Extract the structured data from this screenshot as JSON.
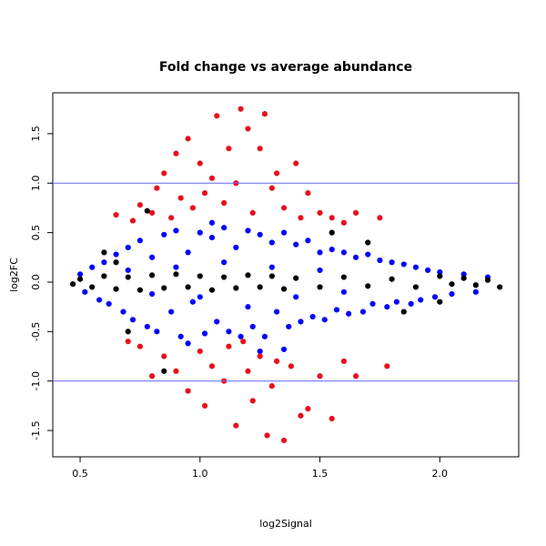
{
  "chart_data": {
    "type": "scatter",
    "title": "Fold change vs average abundance",
    "xlabel": "log2Signal",
    "ylabel": "log2FC",
    "xlim": [
      0.386,
      2.329
    ],
    "ylim": [
      -1.766,
      1.913
    ],
    "xticks": [
      0.5,
      {
        "value": 1,
        "label": "1.0"
      },
      1.5,
      {
        "value": 2,
        "label": "2.0"
      }
    ],
    "yticks": [
      -1.5,
      {
        "value": -1,
        "label": "-1.0"
      },
      -0.5,
      {
        "value": 0,
        "label": "0.0"
      },
      0.5,
      {
        "value": 1,
        "label": "1.0"
      },
      1.5
    ],
    "hlines": [
      1,
      -1
    ],
    "hline_color": "#6666ee",
    "series": [
      {
        "color": "#0000ff",
        "x": [
          0.5,
          0.52,
          0.55,
          0.58,
          0.6,
          0.62,
          0.65,
          0.68,
          0.7,
          0.72,
          0.75,
          0.78,
          0.8,
          0.82,
          0.85,
          0.88,
          0.9,
          0.92,
          0.95,
          0.97,
          1.0,
          1.02,
          1.05,
          1.07,
          1.1,
          1.12,
          1.15,
          1.17,
          1.2,
          1.22,
          1.25,
          1.27,
          1.3,
          1.32,
          1.35,
          1.37,
          1.4,
          1.42,
          1.45,
          1.47,
          1.5,
          1.52,
          1.55,
          1.57,
          1.6,
          1.62,
          1.65,
          1.68,
          1.7,
          1.72,
          1.75,
          1.78,
          1.8,
          1.82,
          1.85,
          1.88,
          1.9,
          1.92,
          1.95,
          1.98,
          2.0,
          2.05,
          2.1,
          2.15,
          2.2,
          0.9,
          1.0,
          1.1,
          1.2,
          1.3,
          1.4,
          1.5,
          0.8,
          0.7,
          1.6,
          1.25,
          1.35,
          1.05,
          0.95
        ],
        "values": [
          0.08,
          -0.1,
          0.15,
          -0.18,
          0.2,
          -0.22,
          0.28,
          -0.3,
          0.35,
          -0.38,
          0.42,
          -0.45,
          0.25,
          -0.5,
          0.48,
          -0.3,
          0.52,
          -0.55,
          0.3,
          -0.2,
          0.5,
          -0.52,
          0.45,
          -0.4,
          0.55,
          -0.5,
          0.35,
          -0.55,
          0.52,
          -0.45,
          0.48,
          -0.55,
          0.4,
          -0.3,
          0.5,
          -0.45,
          0.38,
          -0.4,
          0.42,
          -0.35,
          0.3,
          -0.38,
          0.33,
          -0.28,
          0.3,
          -0.32,
          0.25,
          -0.3,
          0.28,
          -0.22,
          0.22,
          -0.25,
          0.2,
          -0.2,
          0.18,
          -0.22,
          0.15,
          -0.18,
          0.12,
          -0.15,
          0.1,
          -0.12,
          0.08,
          -0.1,
          0.05,
          0.15,
          -0.15,
          0.2,
          -0.25,
          0.15,
          -0.15,
          0.12,
          -0.12,
          0.12,
          -0.1,
          -0.7,
          -0.68,
          0.6,
          -0.62
        ]
      },
      {
        "color": "#e8101c",
        "x": [
          0.75,
          0.8,
          0.82,
          0.85,
          0.88,
          0.9,
          0.92,
          0.95,
          0.97,
          1.0,
          1.02,
          1.05,
          1.07,
          1.1,
          1.12,
          1.15,
          1.17,
          1.2,
          1.22,
          1.25,
          1.27,
          1.3,
          1.32,
          1.35,
          1.4,
          1.42,
          1.45,
          1.5,
          1.55,
          1.6,
          1.65,
          1.75,
          0.65,
          0.72,
          0.75,
          0.8,
          0.85,
          0.9,
          0.95,
          1.0,
          1.02,
          1.05,
          1.1,
          1.12,
          1.15,
          1.2,
          1.22,
          1.25,
          1.28,
          1.3,
          1.32,
          1.35,
          1.38,
          1.42,
          1.45,
          1.5,
          1.55,
          1.6,
          1.65,
          1.78,
          0.7,
          1.18
        ],
        "values": [
          0.78,
          0.7,
          0.95,
          1.1,
          0.65,
          1.3,
          0.85,
          1.45,
          0.75,
          1.2,
          0.9,
          1.05,
          1.68,
          0.8,
          1.35,
          1.0,
          1.75,
          1.55,
          0.7,
          1.35,
          1.7,
          0.95,
          1.1,
          0.75,
          1.2,
          0.65,
          0.9,
          0.7,
          0.65,
          0.6,
          0.7,
          0.65,
          0.68,
          0.62,
          -0.65,
          -0.95,
          -0.75,
          -0.9,
          -1.1,
          -0.7,
          -1.25,
          -0.85,
          -1.0,
          -0.65,
          -1.45,
          -0.9,
          -1.2,
          -0.75,
          -1.55,
          -1.05,
          -0.8,
          -1.6,
          -0.85,
          -1.35,
          -1.28,
          -0.95,
          -1.38,
          -0.8,
          -0.95,
          -0.85,
          -0.6,
          -0.6
        ]
      },
      {
        "color": "#000000",
        "x": [
          0.47,
          0.5,
          0.55,
          0.6,
          0.65,
          0.7,
          0.75,
          0.8,
          0.85,
          0.9,
          0.95,
          1.0,
          1.05,
          1.1,
          1.15,
          1.2,
          1.25,
          1.3,
          1.35,
          1.4,
          1.5,
          1.6,
          1.7,
          1.8,
          1.9,
          2.0,
          2.05,
          2.1,
          2.15,
          2.2,
          2.25,
          0.6,
          0.7,
          0.78,
          0.85,
          1.7,
          1.85,
          2.0,
          0.65,
          1.55
        ],
        "values": [
          -0.02,
          0.03,
          -0.05,
          0.06,
          -0.07,
          0.05,
          -0.08,
          0.07,
          -0.06,
          0.08,
          -0.05,
          0.06,
          -0.08,
          0.05,
          -0.06,
          0.07,
          -0.05,
          0.06,
          -0.07,
          0.04,
          -0.05,
          0.05,
          -0.04,
          0.03,
          -0.05,
          0.06,
          -0.02,
          0.04,
          -0.03,
          0.02,
          -0.05,
          0.3,
          -0.5,
          0.72,
          -0.9,
          0.4,
          -0.3,
          -0.2,
          0.2,
          0.5
        ]
      }
    ]
  }
}
